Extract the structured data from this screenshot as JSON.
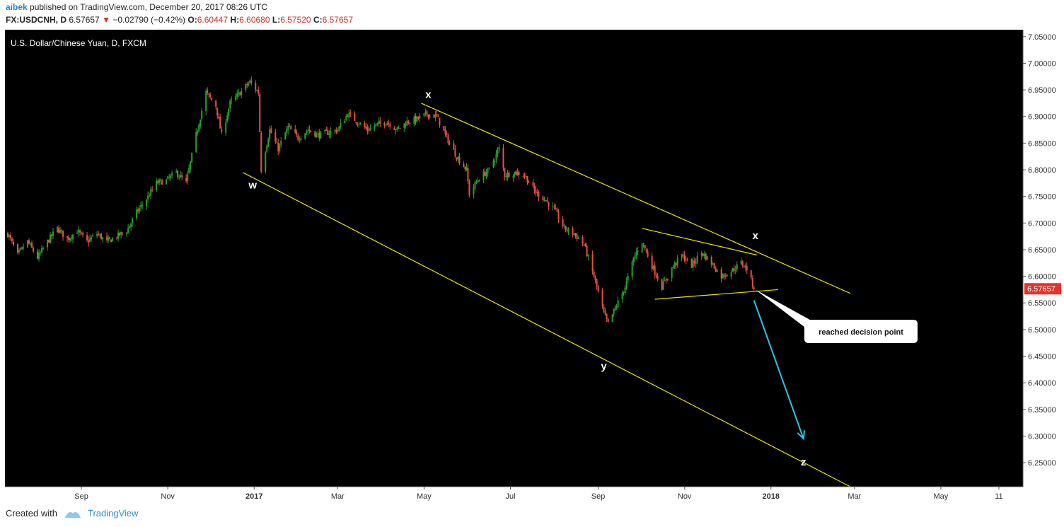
{
  "header": {
    "author": "aibek",
    "published_text": "published on TradingView.com, December 20, 2017 08:26 UTC",
    "symbol_line": {
      "symbol": "FX:USDCNH, D",
      "last": "6.57657",
      "change": "−0.02790 (−0.42%)",
      "o_label": "O:",
      "o": "6.60447",
      "h_label": "H:",
      "h": "6.60680",
      "l_label": "L:",
      "l": "6.57520",
      "c_label": "C:",
      "c": "6.57657"
    }
  },
  "footer": {
    "created_with": "Created with",
    "brand": "TradingView"
  },
  "colors": {
    "background": "#000000",
    "up": "#26a32a",
    "down": "#e8533f",
    "trendline": "#e6e600",
    "arrow": "#29c5e6",
    "price_tag": "#e5322b",
    "axis": "#ffffff"
  },
  "chart_data": {
    "type": "candlestick",
    "title": "U.S. Dollar/Chinese Yuan, D, FXCM",
    "price_tag": "6.57657",
    "ylim": [
      6.205,
      7.063
    ],
    "y_ticks": [
      "7.05000",
      "7.00000",
      "6.95000",
      "6.90000",
      "6.85000",
      "6.80000",
      "6.75000",
      "6.70000",
      "6.65000",
      "6.60000",
      "6.55000",
      "6.50000",
      "6.45000",
      "6.40000",
      "6.35000",
      "6.30000",
      "6.25000"
    ],
    "x_ticks": [
      {
        "label": "Sep",
        "date": "2016-09-01",
        "bold": false
      },
      {
        "label": "Nov",
        "date": "2016-11-01",
        "bold": false
      },
      {
        "label": "2017",
        "date": "2017-01-01",
        "bold": true
      },
      {
        "label": "Mar",
        "date": "2017-03-01",
        "bold": false
      },
      {
        "label": "May",
        "date": "2017-05-01",
        "bold": false
      },
      {
        "label": "Jul",
        "date": "2017-07-01",
        "bold": false
      },
      {
        "label": "Sep",
        "date": "2017-09-01",
        "bold": false
      },
      {
        "label": "Nov",
        "date": "2017-11-01",
        "bold": false
      },
      {
        "label": "2018",
        "date": "2018-01-01",
        "bold": true
      },
      {
        "label": "Mar",
        "date": "2018-03-01",
        "bold": false
      },
      {
        "label": "May",
        "date": "2018-05-01",
        "bold": false
      },
      {
        "label": "11",
        "date": "2018-06-11",
        "bold": false
      }
    ],
    "x_range": [
      "2016-07-09",
      "2018-06-28"
    ],
    "price_path": [
      [
        "2016-07-11",
        6.68
      ],
      [
        "2016-07-18",
        6.64
      ],
      [
        "2016-07-25",
        6.665
      ],
      [
        "2016-08-01",
        6.635
      ],
      [
        "2016-08-08",
        6.665
      ],
      [
        "2016-08-15",
        6.69
      ],
      [
        "2016-08-22",
        6.67
      ],
      [
        "2016-08-29",
        6.685
      ],
      [
        "2016-09-05",
        6.665
      ],
      [
        "2016-09-12",
        6.68
      ],
      [
        "2016-09-19",
        6.665
      ],
      [
        "2016-09-26",
        6.675
      ],
      [
        "2016-10-03",
        6.685
      ],
      [
        "2016-10-10",
        6.72
      ],
      [
        "2016-10-17",
        6.745
      ],
      [
        "2016-10-24",
        6.775
      ],
      [
        "2016-10-31",
        6.78
      ],
      [
        "2016-11-07",
        6.795
      ],
      [
        "2016-11-14",
        6.775
      ],
      [
        "2016-11-21",
        6.865
      ],
      [
        "2016-11-28",
        6.945
      ],
      [
        "2016-12-05",
        6.92
      ],
      [
        "2016-12-09",
        6.865
      ],
      [
        "2016-12-15",
        6.925
      ],
      [
        "2016-12-22",
        6.945
      ],
      [
        "2016-12-29",
        6.965
      ],
      [
        "2017-01-04",
        6.945
      ],
      [
        "2017-01-06",
        6.8
      ],
      [
        "2017-01-12",
        6.875
      ],
      [
        "2017-01-18",
        6.84
      ],
      [
        "2017-01-25",
        6.88
      ],
      [
        "2017-02-01",
        6.86
      ],
      [
        "2017-02-08",
        6.875
      ],
      [
        "2017-02-15",
        6.865
      ],
      [
        "2017-02-22",
        6.87
      ],
      [
        "2017-03-01",
        6.875
      ],
      [
        "2017-03-08",
        6.905
      ],
      [
        "2017-03-15",
        6.89
      ],
      [
        "2017-03-22",
        6.875
      ],
      [
        "2017-03-29",
        6.885
      ],
      [
        "2017-04-05",
        6.89
      ],
      [
        "2017-04-12",
        6.875
      ],
      [
        "2017-04-19",
        6.89
      ],
      [
        "2017-04-26",
        6.895
      ],
      [
        "2017-05-03",
        6.905
      ],
      [
        "2017-05-10",
        6.9
      ],
      [
        "2017-05-17",
        6.86
      ],
      [
        "2017-05-24",
        6.825
      ],
      [
        "2017-05-31",
        6.8
      ],
      [
        "2017-06-02",
        6.755
      ],
      [
        "2017-06-09",
        6.785
      ],
      [
        "2017-06-16",
        6.8
      ],
      [
        "2017-06-23",
        6.84
      ],
      [
        "2017-06-27",
        6.79
      ],
      [
        "2017-07-04",
        6.795
      ],
      [
        "2017-07-11",
        6.79
      ],
      [
        "2017-07-18",
        6.76
      ],
      [
        "2017-07-25",
        6.745
      ],
      [
        "2017-08-01",
        6.725
      ],
      [
        "2017-08-08",
        6.69
      ],
      [
        "2017-08-15",
        6.68
      ],
      [
        "2017-08-22",
        6.66
      ],
      [
        "2017-08-29",
        6.6
      ],
      [
        "2017-09-05",
        6.53
      ],
      [
        "2017-09-08",
        6.51
      ],
      [
        "2017-09-13",
        6.54
      ],
      [
        "2017-09-20",
        6.58
      ],
      [
        "2017-09-27",
        6.64
      ],
      [
        "2017-10-02",
        6.665
      ],
      [
        "2017-10-09",
        6.62
      ],
      [
        "2017-10-16",
        6.58
      ],
      [
        "2017-10-23",
        6.615
      ],
      [
        "2017-10-30",
        6.64
      ],
      [
        "2017-11-06",
        6.62
      ],
      [
        "2017-11-13",
        6.645
      ],
      [
        "2017-11-20",
        6.625
      ],
      [
        "2017-11-27",
        6.6
      ],
      [
        "2017-12-04",
        6.61
      ],
      [
        "2017-12-11",
        6.625
      ],
      [
        "2017-12-15",
        6.615
      ],
      [
        "2017-12-20",
        6.57657
      ]
    ],
    "annotations": [
      {
        "text": "x",
        "date": "2017-05-04",
        "price": 6.935
      },
      {
        "text": "w",
        "date": "2016-12-31",
        "price": 6.765
      },
      {
        "text": "x",
        "date": "2017-12-21",
        "price": 6.67
      },
      {
        "text": "y",
        "date": "2017-09-05",
        "price": 6.425
      },
      {
        "text": "z",
        "date": "2018-01-24",
        "price": 6.245
      }
    ],
    "trendlines": [
      {
        "name": "channel-upper",
        "from": [
          "2017-04-29",
          6.925
        ],
        "to": [
          "2018-02-26",
          6.568
        ]
      },
      {
        "name": "channel-lower",
        "from": [
          "2016-12-24",
          6.795
        ],
        "to": [
          "2018-02-26",
          6.205
        ]
      },
      {
        "name": "triangle-upper",
        "from": [
          "2017-10-02",
          6.69
        ],
        "to": [
          "2017-12-22",
          6.64
        ]
      },
      {
        "name": "triangle-lower",
        "from": [
          "2017-10-11",
          6.557
        ],
        "to": [
          "2018-01-06",
          6.575
        ]
      }
    ],
    "arrow": {
      "from": [
        "2017-12-20",
        6.555
      ],
      "to": [
        "2018-01-24",
        6.295
      ]
    },
    "callout": {
      "text": "reached decision point",
      "anchor": [
        "2017-12-21",
        6.575
      ]
    }
  }
}
